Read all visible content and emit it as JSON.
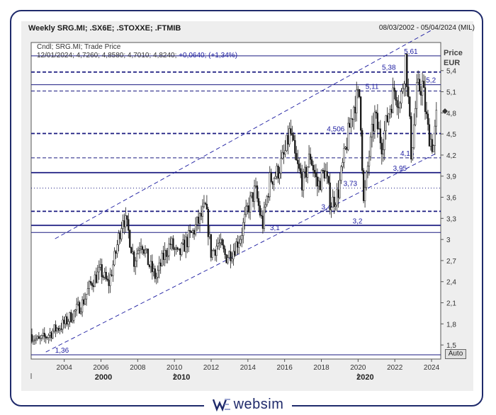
{
  "header": {
    "title": "Weekly SRG.MI; .SX6E; .STOXXE; .FTMIB",
    "range": "08/03/2002 - 05/04/2024 (MIL)"
  },
  "legend": {
    "line1": "Cndl; SRG.MI; Trade Price",
    "line2_values": "12/01/2024; 4,7260; 4,8580; 4,7010; 4,8240;",
    "line2_change": "+0,0640; (+1,34%)"
  },
  "axis": {
    "price_label": "Price",
    "currency_label": "EUR",
    "auto_button": "Auto"
  },
  "logo": {
    "text": "websim",
    "brand_color": "#1f2a6b"
  },
  "chart_data": {
    "type": "candlestick",
    "ylim": [
      1.3,
      5.8
    ],
    "xlim": [
      2002.2,
      2024.5
    ],
    "y_ticks": [
      "1,5",
      "1,8",
      "2,1",
      "2,4",
      "2,7",
      "3",
      "3,3",
      "3,6",
      "3,9",
      "4,2",
      "4,5",
      "4,8",
      "5,1",
      "5,4"
    ],
    "y_tick_values": [
      1.5,
      1.8,
      2.1,
      2.4,
      2.7,
      3.0,
      3.3,
      3.6,
      3.9,
      4.2,
      4.5,
      4.8,
      5.1,
      5.4
    ],
    "x_ticks": [
      "2004",
      "2006",
      "2008",
      "2010",
      "2012",
      "2014",
      "2016",
      "2018",
      "2020",
      "2022",
      "2024"
    ],
    "x_tick_values": [
      2004,
      2006,
      2008,
      2010,
      2012,
      2014,
      2016,
      2018,
      2020,
      2022,
      2024
    ],
    "x_major": [
      {
        "label": "2000",
        "x": 2002.2
      },
      {
        "label": "2010",
        "x": 2010
      },
      {
        "label": "2020",
        "x": 2020
      }
    ],
    "last_close": 4.824,
    "series_path": [
      [
        2002.2,
        1.65
      ],
      [
        2002.6,
        1.55
      ],
      [
        2003.0,
        1.62
      ],
      [
        2003.5,
        1.72
      ],
      [
        2004.0,
        1.8
      ],
      [
        2004.5,
        1.95
      ],
      [
        2005.0,
        2.1
      ],
      [
        2005.5,
        2.4
      ],
      [
        2006.0,
        2.55
      ],
      [
        2006.4,
        2.35
      ],
      [
        2006.8,
        2.8
      ],
      [
        2007.2,
        3.35
      ],
      [
        2007.5,
        3.1
      ],
      [
        2007.8,
        2.7
      ],
      [
        2008.2,
        3.0
      ],
      [
        2008.6,
        2.65
      ],
      [
        2009.0,
        2.45
      ],
      [
        2009.4,
        2.75
      ],
      [
        2009.8,
        2.95
      ],
      [
        2010.2,
        2.75
      ],
      [
        2010.6,
        2.95
      ],
      [
        2011.0,
        3.1
      ],
      [
        2011.4,
        3.3
      ],
      [
        2011.7,
        3.45
      ],
      [
        2012.0,
        2.8
      ],
      [
        2012.4,
        2.95
      ],
      [
        2012.8,
        2.75
      ],
      [
        2013.2,
        2.85
      ],
      [
        2013.6,
        3.05
      ],
      [
        2014.0,
        3.45
      ],
      [
        2014.4,
        3.7
      ],
      [
        2014.8,
        3.2
      ],
      [
        2015.2,
        3.85
      ],
      [
        2015.6,
        3.95
      ],
      [
        2016.0,
        4.2
      ],
      [
        2016.3,
        4.55
      ],
      [
        2016.6,
        4.1
      ],
      [
        2017.0,
        3.8
      ],
      [
        2017.4,
        4.2
      ],
      [
        2017.8,
        3.75
      ],
      [
        2018.2,
        4.0
      ],
      [
        2018.5,
        3.5
      ],
      [
        2018.9,
        3.65
      ],
      [
        2019.2,
        4.1
      ],
      [
        2019.5,
        4.55
      ],
      [
        2019.8,
        4.95
      ],
      [
        2020.1,
        5.05
      ],
      [
        2020.3,
        3.5
      ],
      [
        2020.6,
        4.2
      ],
      [
        2020.9,
        4.75
      ],
      [
        2021.3,
        4.35
      ],
      [
        2021.7,
        4.85
      ],
      [
        2022.0,
        5.15
      ],
      [
        2022.3,
        4.9
      ],
      [
        2022.6,
        5.61
      ],
      [
        2022.9,
        4.2
      ],
      [
        2023.2,
        5.1
      ],
      [
        2023.5,
        5.2
      ],
      [
        2023.8,
        4.55
      ],
      [
        2024.1,
        4.3
      ],
      [
        2024.3,
        4.82
      ]
    ],
    "h_lines": [
      {
        "value": 5.61,
        "style": "solid",
        "label": "5,61",
        "label_x": 2022.5
      },
      {
        "value": 5.38,
        "style": "dashed-bold",
        "label": "5,38",
        "label_x": 2021.3
      },
      {
        "value": 5.2,
        "style": "solid",
        "label": "5,2",
        "label_x": 2023.7
      },
      {
        "value": 5.11,
        "style": "dashed",
        "label": "5,11",
        "label_x": 2020.4
      },
      {
        "value": 4.506,
        "style": "dashed-bold",
        "label": "4,506",
        "label_x": 2018.3
      },
      {
        "value": 4.16,
        "style": "dashed",
        "label": "4,16",
        "label_x": 2022.3
      },
      {
        "value": 3.95,
        "style": "solid-bold",
        "label": "3,95",
        "label_x": 2021.9
      },
      {
        "value": 3.73,
        "style": "dotted",
        "label": "3,73",
        "label_x": 2019.2
      },
      {
        "value": 3.4,
        "style": "dashed-bold",
        "label": "3,4",
        "label_x": 2018.0
      },
      {
        "value": 3.2,
        "style": "solid-bold",
        "label": "3,2",
        "label_x": 2019.7
      },
      {
        "value": 3.1,
        "style": "solid",
        "label": "3,1",
        "label_x": 2015.2
      },
      {
        "value": 1.36,
        "style": "solid",
        "label": "1,36",
        "label_x": 2003.5
      }
    ],
    "channel": [
      {
        "x1": 2003.5,
        "y1": 3.01,
        "x2": 2024.1,
        "y2": 5.99
      },
      {
        "x1": 2003.0,
        "y1": 1.4,
        "x2": 2024.3,
        "y2": 4.23
      }
    ],
    "colors": {
      "candle": "#1a1a1a",
      "level": "#1a1a80",
      "label": "#1a1aa0",
      "grid": "#cfcfcf"
    }
  }
}
